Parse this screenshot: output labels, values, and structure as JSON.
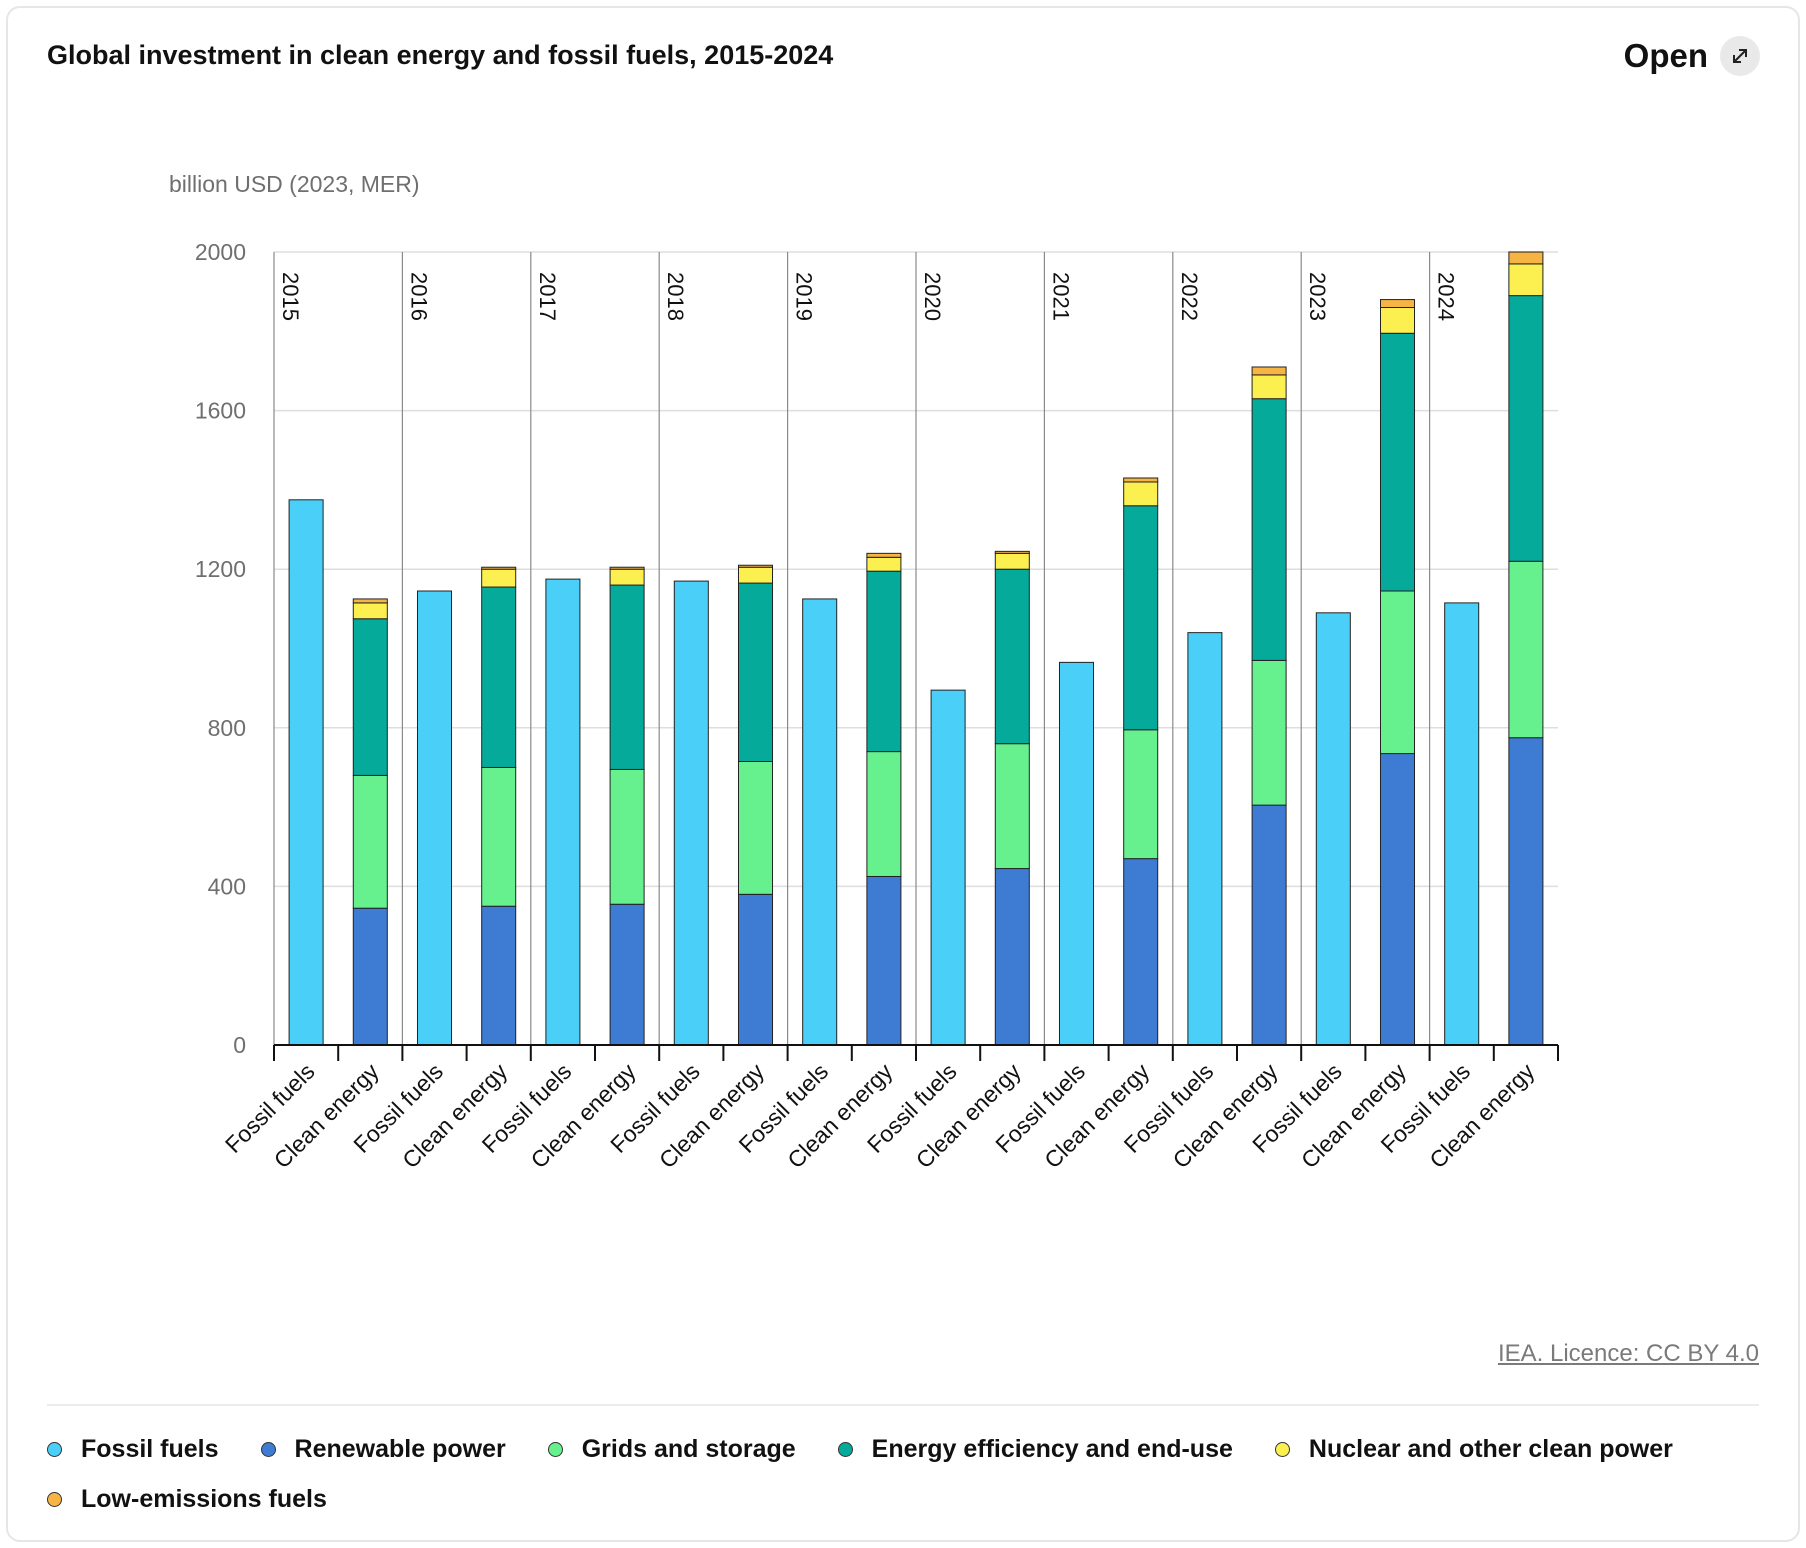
{
  "header": {
    "title": "Global investment in clean energy and fossil fuels, 2015-2024",
    "open_label": "Open",
    "open_icon": "expand-arrows-icon"
  },
  "source_text": "IEA. Licence: CC BY 4.0",
  "legend": [
    {
      "label": "Fossil fuels",
      "color": "#4ad0f8"
    },
    {
      "label": "Renewable power",
      "color": "#3e7cd4"
    },
    {
      "label": "Grids and storage",
      "color": "#66f08e"
    },
    {
      "label": "Energy efficiency and end-use",
      "color": "#06aa9b"
    },
    {
      "label": "Nuclear and other clean power",
      "color": "#fcef50"
    },
    {
      "label": "Low-emissions fuels",
      "color": "#f6b444"
    }
  ],
  "chart_data": {
    "type": "bar",
    "stacked": true,
    "ylabel": "billion USD (2023, MER)",
    "ylim": [
      0,
      2000
    ],
    "yticks": [
      0,
      400,
      800,
      1200,
      1600,
      2000
    ],
    "grid": true,
    "groups": [
      "2015",
      "2016",
      "2017",
      "2018",
      "2019",
      "2020",
      "2021",
      "2022",
      "2023",
      "2024"
    ],
    "categories": [
      "Fossil fuels",
      "Clean energy"
    ],
    "series": [
      {
        "name": "Fossil fuels",
        "color": "#4ad0f8",
        "values": [
          [
            1375,
            0
          ],
          [
            1145,
            0
          ],
          [
            1175,
            0
          ],
          [
            1170,
            0
          ],
          [
            1125,
            0
          ],
          [
            895,
            0
          ],
          [
            965,
            0
          ],
          [
            1040,
            0
          ],
          [
            1090,
            0
          ],
          [
            1115,
            0
          ]
        ]
      },
      {
        "name": "Renewable power",
        "color": "#3e7cd4",
        "values": [
          [
            0,
            345
          ],
          [
            0,
            350
          ],
          [
            0,
            355
          ],
          [
            0,
            380
          ],
          [
            0,
            425
          ],
          [
            0,
            445
          ],
          [
            0,
            470
          ],
          [
            0,
            605
          ],
          [
            0,
            735
          ],
          [
            0,
            775
          ]
        ]
      },
      {
        "name": "Grids and storage",
        "color": "#66f08e",
        "values": [
          [
            0,
            335
          ],
          [
            0,
            350
          ],
          [
            0,
            340
          ],
          [
            0,
            335
          ],
          [
            0,
            315
          ],
          [
            0,
            315
          ],
          [
            0,
            325
          ],
          [
            0,
            365
          ],
          [
            0,
            410
          ],
          [
            0,
            445
          ]
        ]
      },
      {
        "name": "Energy efficiency and end-use",
        "color": "#06aa9b",
        "values": [
          [
            0,
            395
          ],
          [
            0,
            455
          ],
          [
            0,
            465
          ],
          [
            0,
            450
          ],
          [
            0,
            455
          ],
          [
            0,
            440
          ],
          [
            0,
            565
          ],
          [
            0,
            660
          ],
          [
            0,
            650
          ],
          [
            0,
            670
          ]
        ]
      },
      {
        "name": "Nuclear and other clean power",
        "color": "#fcef50",
        "values": [
          [
            0,
            40
          ],
          [
            0,
            45
          ],
          [
            0,
            40
          ],
          [
            0,
            40
          ],
          [
            0,
            35
          ],
          [
            0,
            40
          ],
          [
            0,
            60
          ],
          [
            0,
            60
          ],
          [
            0,
            65
          ],
          [
            0,
            80
          ]
        ]
      },
      {
        "name": "Low-emissions fuels",
        "color": "#f6b444",
        "values": [
          [
            0,
            10
          ],
          [
            0,
            5
          ],
          [
            0,
            5
          ],
          [
            0,
            5
          ],
          [
            0,
            10
          ],
          [
            0,
            5
          ],
          [
            0,
            10
          ],
          [
            0,
            20
          ],
          [
            0,
            20
          ],
          [
            0,
            30
          ]
        ]
      }
    ]
  }
}
